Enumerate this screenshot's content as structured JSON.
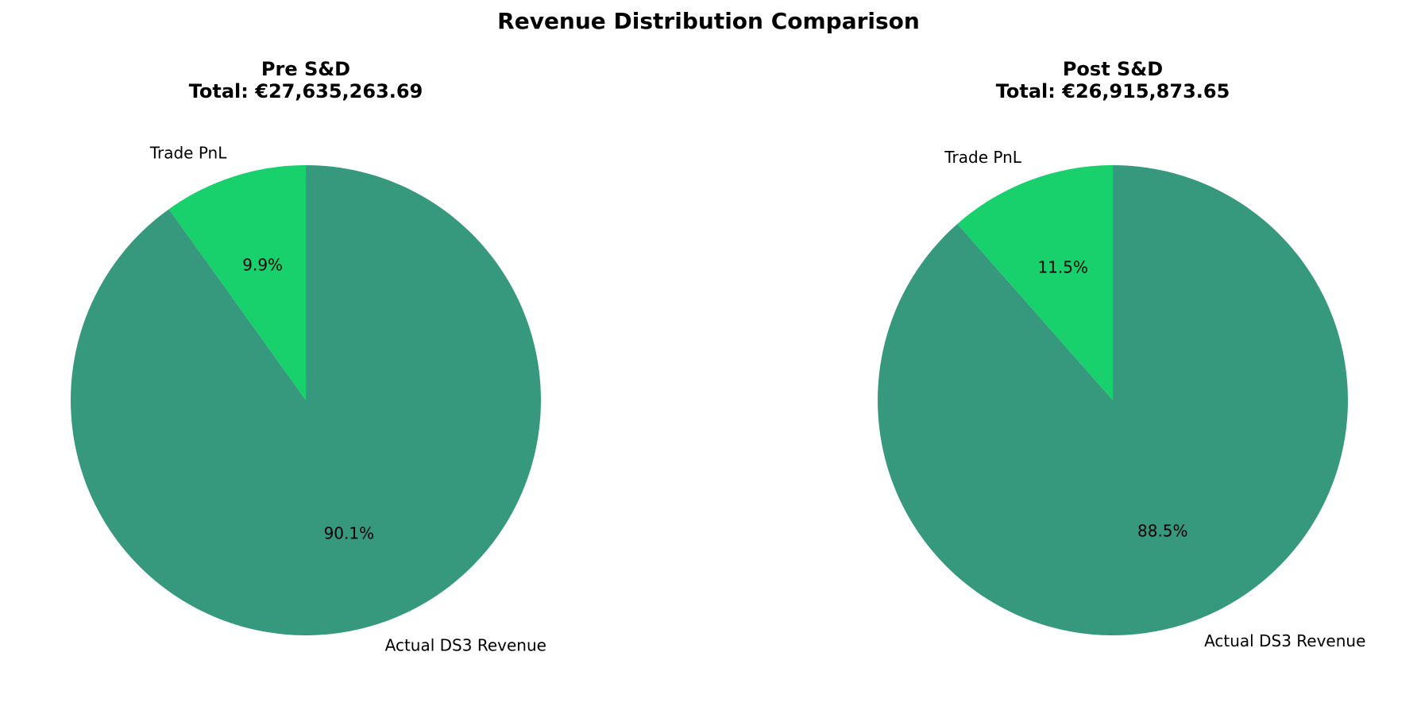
{
  "chart_data": {
    "type": "pie",
    "title": "Revenue Distribution Comparison",
    "charts": [
      {
        "title": "Pre S&D",
        "subtitle": "Total: €27,635,263.69",
        "start_angle_deg": 90,
        "direction": "counterclockwise",
        "slices": [
          {
            "label": "Trade PnL",
            "value": 9.9,
            "pct_label": "9.9%",
            "color": "#18d06c"
          },
          {
            "label": "Actual DS3 Revenue",
            "value": 90.1,
            "pct_label": "90.1%",
            "color": "#36987c"
          }
        ]
      },
      {
        "title": "Post S&D",
        "subtitle": "Total: €26,915,873.65",
        "start_angle_deg": 90,
        "direction": "counterclockwise",
        "slices": [
          {
            "label": "Trade PnL",
            "value": 11.5,
            "pct_label": "11.5%",
            "color": "#18d06c"
          },
          {
            "label": "Actual DS3 Revenue",
            "value": 88.5,
            "pct_label": "88.5%",
            "color": "#36987c"
          }
        ]
      }
    ]
  }
}
